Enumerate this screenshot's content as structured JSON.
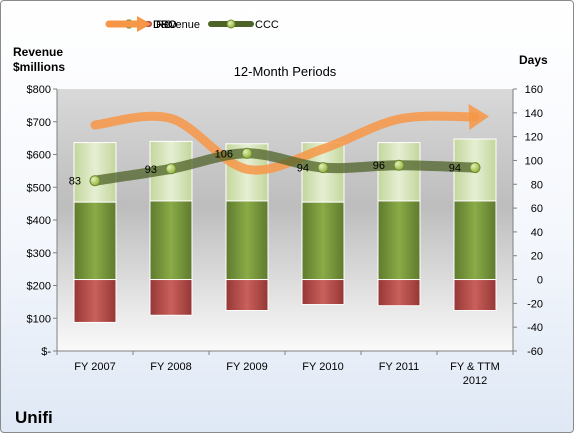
{
  "chart_data": {
    "type": "bar",
    "title": "12-Month Periods",
    "company": "Unifi",
    "y_left_label": "Revenue\n$millions",
    "y_right_label": "Days",
    "categories": [
      "FY 2007",
      "FY 2008",
      "FY 2009",
      "FY 2010",
      "FY 2011",
      "FY & TTM 2012"
    ],
    "y_left_ticks": [
      "$-",
      "$100",
      "$200",
      "$300",
      "$400",
      "$500",
      "$600",
      "$700",
      "$800"
    ],
    "y_left_range": [
      0,
      800
    ],
    "y_right_range": [
      -60,
      160
    ],
    "y_right_ticks": [
      -60,
      -40,
      -20,
      0,
      20,
      40,
      60,
      80,
      100,
      120,
      140,
      160
    ],
    "grid": false,
    "legend_position": "top",
    "series": [
      {
        "name": "DIO",
        "type": "stacked-bar",
        "axis": "right",
        "color": "#77933c",
        "values": [
          65,
          66,
          66,
          65,
          66,
          66
        ]
      },
      {
        "name": "DSO",
        "type": "stacked-bar",
        "axis": "right",
        "color": "#d7e4bd",
        "values": [
          50,
          50,
          48,
          50,
          49,
          52
        ]
      },
      {
        "name": "DPO",
        "type": "stacked-bar-negative",
        "axis": "right",
        "color": "#c0504d",
        "values": [
          -36,
          -30,
          -26,
          -21,
          -22,
          -26
        ]
      },
      {
        "name": "Revenue",
        "type": "line",
        "axis": "left",
        "color": "#f79646",
        "values": [
          690,
          710,
          555,
          617,
          708,
          715
        ]
      },
      {
        "name": "CCC",
        "type": "line",
        "axis": "right",
        "color": "#4f6228",
        "values": [
          83,
          93,
          106,
          94,
          96,
          94
        ]
      }
    ]
  }
}
